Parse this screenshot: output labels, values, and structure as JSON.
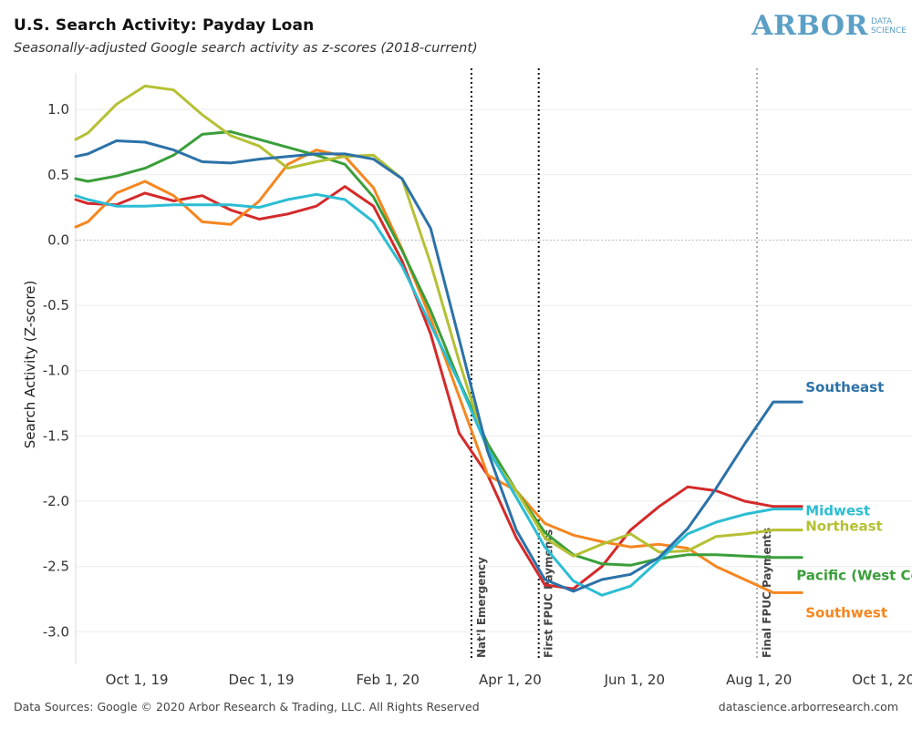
{
  "header": {
    "title": "U.S. Search Activity: Payday Loan",
    "subtitle": "Seasonally-adjusted Google search activity as z-scores (2018-current)"
  },
  "logo": {
    "word": "ARBOR",
    "sub_line1": "DATA",
    "sub_line2": "SCIENCE",
    "color": "#5b9fc6"
  },
  "footer": {
    "left": "Data Sources: Google © 2020 Arbor Research & Trading, LLC. All Rights Reserved",
    "right": "datascience.arborresearch.com"
  },
  "chart_data": {
    "type": "line",
    "title": "U.S. Search Activity: Payday Loan",
    "subtitle": "Seasonally-adjusted Google search activity as z-scores (2018-current)",
    "xlabel": "",
    "ylabel": "Search Activity (Z-score)",
    "x_range": [
      "2019-09-01",
      "2020-10-15"
    ],
    "ylim": [
      -3.2,
      1.35
    ],
    "y_ticks": [
      1.0,
      0.5,
      0.0,
      -0.5,
      -1.0,
      -1.5,
      -2.0,
      -2.5,
      -3.0
    ],
    "y_tick_labels": [
      "1.0",
      "0.5",
      "0.0",
      "-0.5",
      "-1.0",
      "-1.5",
      "-2.0",
      "-2.5",
      "-3.0"
    ],
    "x_ticks": [
      "2019-10-01",
      "2019-12-01",
      "2020-02-01",
      "2020-04-01",
      "2020-06-01",
      "2020-08-01",
      "2020-10-01"
    ],
    "x_tick_labels": [
      "Oct 1, 19",
      "Dec 1, 19",
      "Feb 1, 20",
      "Apr 1, 20",
      "Jun 1, 20",
      "Aug 1, 20",
      "Oct 1, 20"
    ],
    "grid": "horizontal",
    "zero_line": true,
    "annotations": [
      {
        "date": "2020-03-13",
        "label": "Nat'l Emergency",
        "style": "dotted-black"
      },
      {
        "date": "2020-04-15",
        "label": "First FPUC Payments",
        "style": "dotted-black"
      },
      {
        "date": "2020-07-31",
        "label": "Final FPUC Payments",
        "style": "dotted-gray"
      }
    ],
    "x": [
      "2019-09-01",
      "2019-09-07",
      "2019-09-21",
      "2019-10-05",
      "2019-10-19",
      "2019-11-02",
      "2019-11-16",
      "2019-11-30",
      "2019-12-14",
      "2019-12-28",
      "2020-01-11",
      "2020-01-25",
      "2020-02-08",
      "2020-02-22",
      "2020-03-07",
      "2020-03-21",
      "2020-04-04",
      "2020-04-18",
      "2020-05-02",
      "2020-05-16",
      "2020-05-30",
      "2020-06-13",
      "2020-06-27",
      "2020-07-11",
      "2020-07-25",
      "2020-08-08",
      "2020-08-22"
    ],
    "series": [
      {
        "name": "Southeast",
        "color": "#2c72a8",
        "values": [
          0.64,
          0.66,
          0.76,
          0.75,
          0.69,
          0.6,
          0.59,
          0.62,
          0.64,
          0.66,
          0.66,
          0.62,
          0.47,
          0.09,
          -0.76,
          -1.62,
          -2.22,
          -2.6,
          -2.69,
          -2.6,
          -2.56,
          -2.43,
          -2.21,
          -1.9,
          -1.56,
          -1.24,
          -1.24
        ]
      },
      {
        "name": "Midwest",
        "color": "#2cbdd3",
        "values": [
          0.34,
          0.31,
          0.26,
          0.26,
          0.27,
          0.27,
          0.27,
          0.25,
          0.31,
          0.35,
          0.31,
          0.14,
          -0.2,
          -0.65,
          -1.09,
          -1.6,
          -1.97,
          -2.35,
          -2.61,
          -2.72,
          -2.65,
          -2.45,
          -2.25,
          -2.16,
          -2.1,
          -2.06,
          -2.06
        ]
      },
      {
        "name": "Northeast",
        "color": "#b5c033",
        "values": [
          0.77,
          0.82,
          1.04,
          1.18,
          1.15,
          0.96,
          0.8,
          0.72,
          0.55,
          0.6,
          0.64,
          0.65,
          0.47,
          -0.18,
          -0.93,
          -1.62,
          -1.92,
          -2.28,
          -2.42,
          -2.33,
          -2.25,
          -2.39,
          -2.38,
          -2.27,
          -2.25,
          -2.22,
          -2.22
        ]
      },
      {
        "name": "Pacific (West Coast)",
        "color": "#3a9e3a",
        "values": [
          0.47,
          0.45,
          0.49,
          0.55,
          0.65,
          0.81,
          0.83,
          0.77,
          0.71,
          0.65,
          0.58,
          0.33,
          -0.08,
          -0.54,
          -1.08,
          -1.56,
          -1.92,
          -2.24,
          -2.41,
          -2.48,
          -2.49,
          -2.44,
          -2.41,
          -2.41,
          -2.42,
          -2.43,
          -2.43
        ]
      },
      {
        "name": "Southwest",
        "color": "#f5861f",
        "values": [
          0.1,
          0.14,
          0.36,
          0.45,
          0.34,
          0.14,
          0.12,
          0.3,
          0.58,
          0.69,
          0.64,
          0.4,
          -0.07,
          -0.6,
          -1.2,
          -1.8,
          -1.92,
          -2.17,
          -2.26,
          -2.31,
          -2.35,
          -2.33,
          -2.36,
          -2.5,
          -2.6,
          -2.7,
          -2.7
        ]
      },
      {
        "name": "",
        "color": "#d42a2a",
        "values": [
          0.31,
          0.28,
          0.27,
          0.36,
          0.3,
          0.34,
          0.23,
          0.16,
          0.2,
          0.26,
          0.41,
          0.26,
          -0.16,
          -0.72,
          -1.48,
          -1.8,
          -2.28,
          -2.64,
          -2.67,
          -2.5,
          -2.22,
          -2.04,
          -1.89,
          -1.92,
          -2.0,
          -2.04,
          -2.04
        ]
      }
    ],
    "series_labels": [
      {
        "text": "Southeast",
        "color": "#2c72a8"
      },
      {
        "text": "Midwest",
        "color": "#2cbdd3"
      },
      {
        "text": "Northeast",
        "color": "#b5c033"
      },
      {
        "text": "Pacific (West Coast)",
        "color": "#3a9e3a"
      },
      {
        "text": "Southwest",
        "color": "#f5861f"
      }
    ]
  }
}
